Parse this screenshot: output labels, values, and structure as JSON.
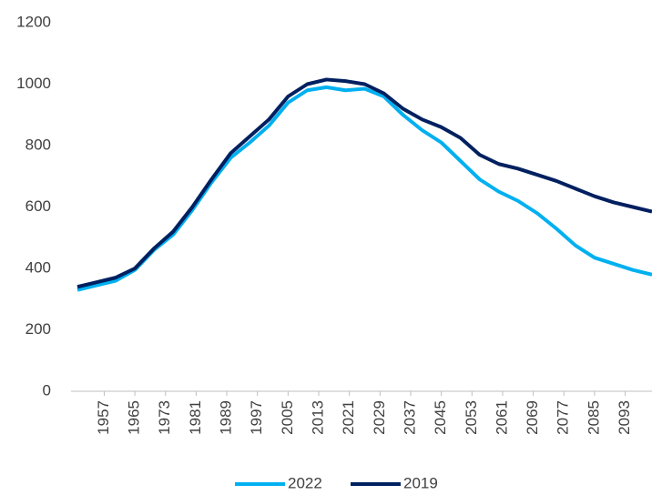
{
  "chart_data": {
    "type": "line",
    "x": [
      1950,
      1955,
      1960,
      1965,
      1970,
      1975,
      1980,
      1985,
      1990,
      1995,
      2000,
      2005,
      2010,
      2015,
      2020,
      2025,
      2030,
      2035,
      2040,
      2045,
      2050,
      2055,
      2060,
      2065,
      2070,
      2075,
      2080,
      2085,
      2090,
      2095,
      2100
    ],
    "series": [
      {
        "name": "2022",
        "color": "#00b0f0",
        "values": [
          330,
          345,
          360,
          395,
          460,
          510,
          590,
          680,
          760,
          810,
          865,
          940,
          980,
          990,
          980,
          985,
          960,
          900,
          850,
          810,
          750,
          690,
          650,
          620,
          580,
          530,
          475,
          435,
          415,
          395,
          380
        ]
      },
      {
        "name": "2019",
        "color": "#002060",
        "values": [
          340,
          355,
          370,
          400,
          465,
          520,
          600,
          690,
          775,
          830,
          885,
          960,
          1000,
          1015,
          1010,
          1000,
          970,
          920,
          885,
          860,
          825,
          770,
          740,
          725,
          705,
          685,
          660,
          635,
          615,
          600,
          585
        ]
      }
    ],
    "xlim": [
      1950,
      2100
    ],
    "xticks": [
      1957,
      1965,
      1973,
      1981,
      1989,
      1997,
      2005,
      2013,
      2021,
      2029,
      2037,
      2045,
      2053,
      2061,
      2069,
      2077,
      2085,
      2093
    ],
    "ylim": [
      0,
      1200
    ],
    "yticks": [
      0,
      200,
      400,
      600,
      800,
      1000,
      1200
    ],
    "grid": false,
    "legend": "bottom"
  }
}
